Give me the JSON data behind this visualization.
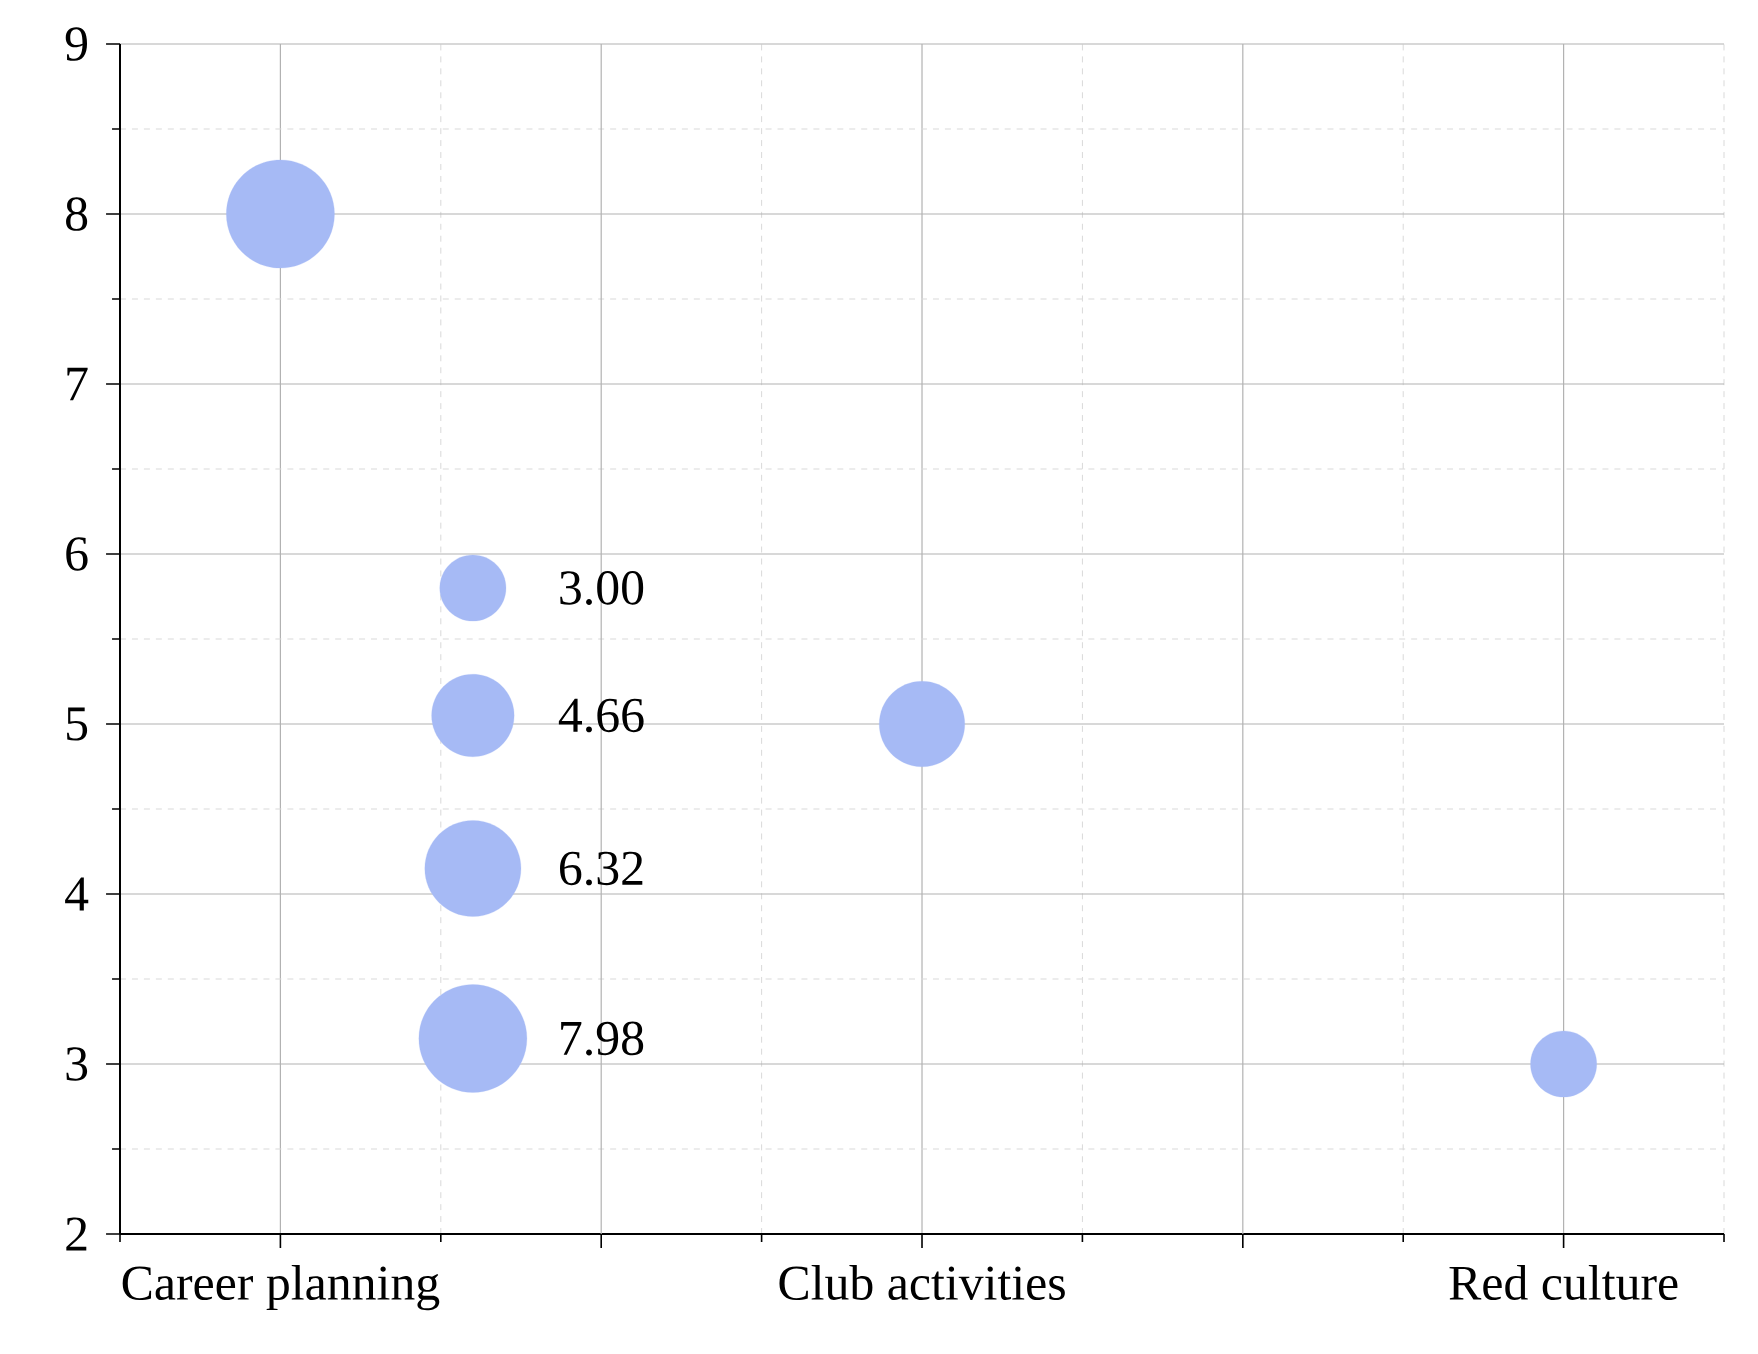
{
  "chart_data": {
    "type": "bubble",
    "categories": [
      "Career planning",
      "Club activities",
      "Red culture"
    ],
    "values": [
      8,
      5,
      3
    ],
    "sizes": [
      8,
      5,
      3
    ],
    "size_legend": [
      {
        "value": 3,
        "label": "3.00"
      },
      {
        "value": 4.66,
        "label": "4.66"
      },
      {
        "value": 6.32,
        "label": "6.32"
      },
      {
        "value": 7.98,
        "label": "7.98"
      }
    ],
    "color": "#a6baf5",
    "ylim": [
      2,
      9
    ],
    "yticks": [
      2,
      3,
      4,
      5,
      6,
      7,
      8,
      9
    ],
    "grid": true
  }
}
